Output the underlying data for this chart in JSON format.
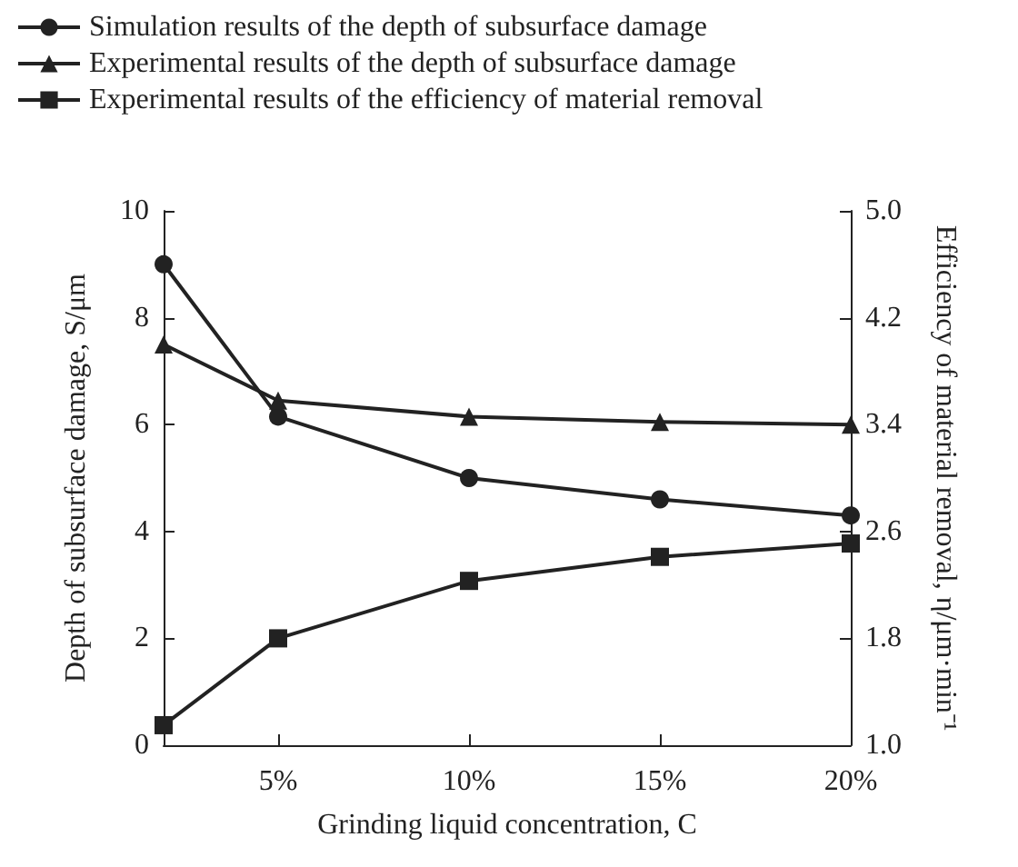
{
  "chart_data": {
    "type": "line",
    "xlabel": "Grinding liquid concentration, C",
    "ylabel": "Depth of subsurface damage, S/μm",
    "y2label": "Efficiency of material removal, η/μm·min⁻¹",
    "x": [
      2,
      5,
      10,
      15,
      20
    ],
    "xlim": [
      2,
      20
    ],
    "xticks": [
      {
        "value": 5,
        "label": "5%"
      },
      {
        "value": 10,
        "label": "10%"
      },
      {
        "value": 15,
        "label": "15%"
      },
      {
        "value": 20,
        "label": "20%"
      }
    ],
    "ylim": [
      0,
      10
    ],
    "yticks": [
      0,
      2,
      4,
      6,
      8,
      10
    ],
    "y2lim": [
      1,
      5
    ],
    "y2ticks": [
      {
        "value": 1,
        "label": "1.0"
      },
      {
        "value": 1.8,
        "label": "1.8"
      },
      {
        "value": 2.6,
        "label": "2.6"
      },
      {
        "value": 3.4,
        "label": "3.4"
      },
      {
        "value": 4.2,
        "label": "4.2"
      },
      {
        "value": 5,
        "label": "5.0"
      }
    ],
    "series": [
      {
        "name": "Simulation results of the depth of subsurface damage",
        "color": "#222222",
        "marker": "circle",
        "values": [
          9.0,
          6.15,
          5.0,
          4.6,
          4.3
        ]
      },
      {
        "name": "Experimental results of the depth of subsurface damage",
        "color": "#222222",
        "marker": "triangle",
        "values": [
          7.5,
          6.45,
          6.15,
          6.05,
          6.0
        ]
      },
      {
        "name": "Experimental results of the efficiency of material removal",
        "color": "#222222",
        "marker": "square",
        "axis": "y2",
        "values": [
          1.15,
          1.8,
          2.23,
          2.41,
          2.51
        ]
      }
    ],
    "legend": "top left",
    "grid": false,
    "line_style": "solid"
  }
}
